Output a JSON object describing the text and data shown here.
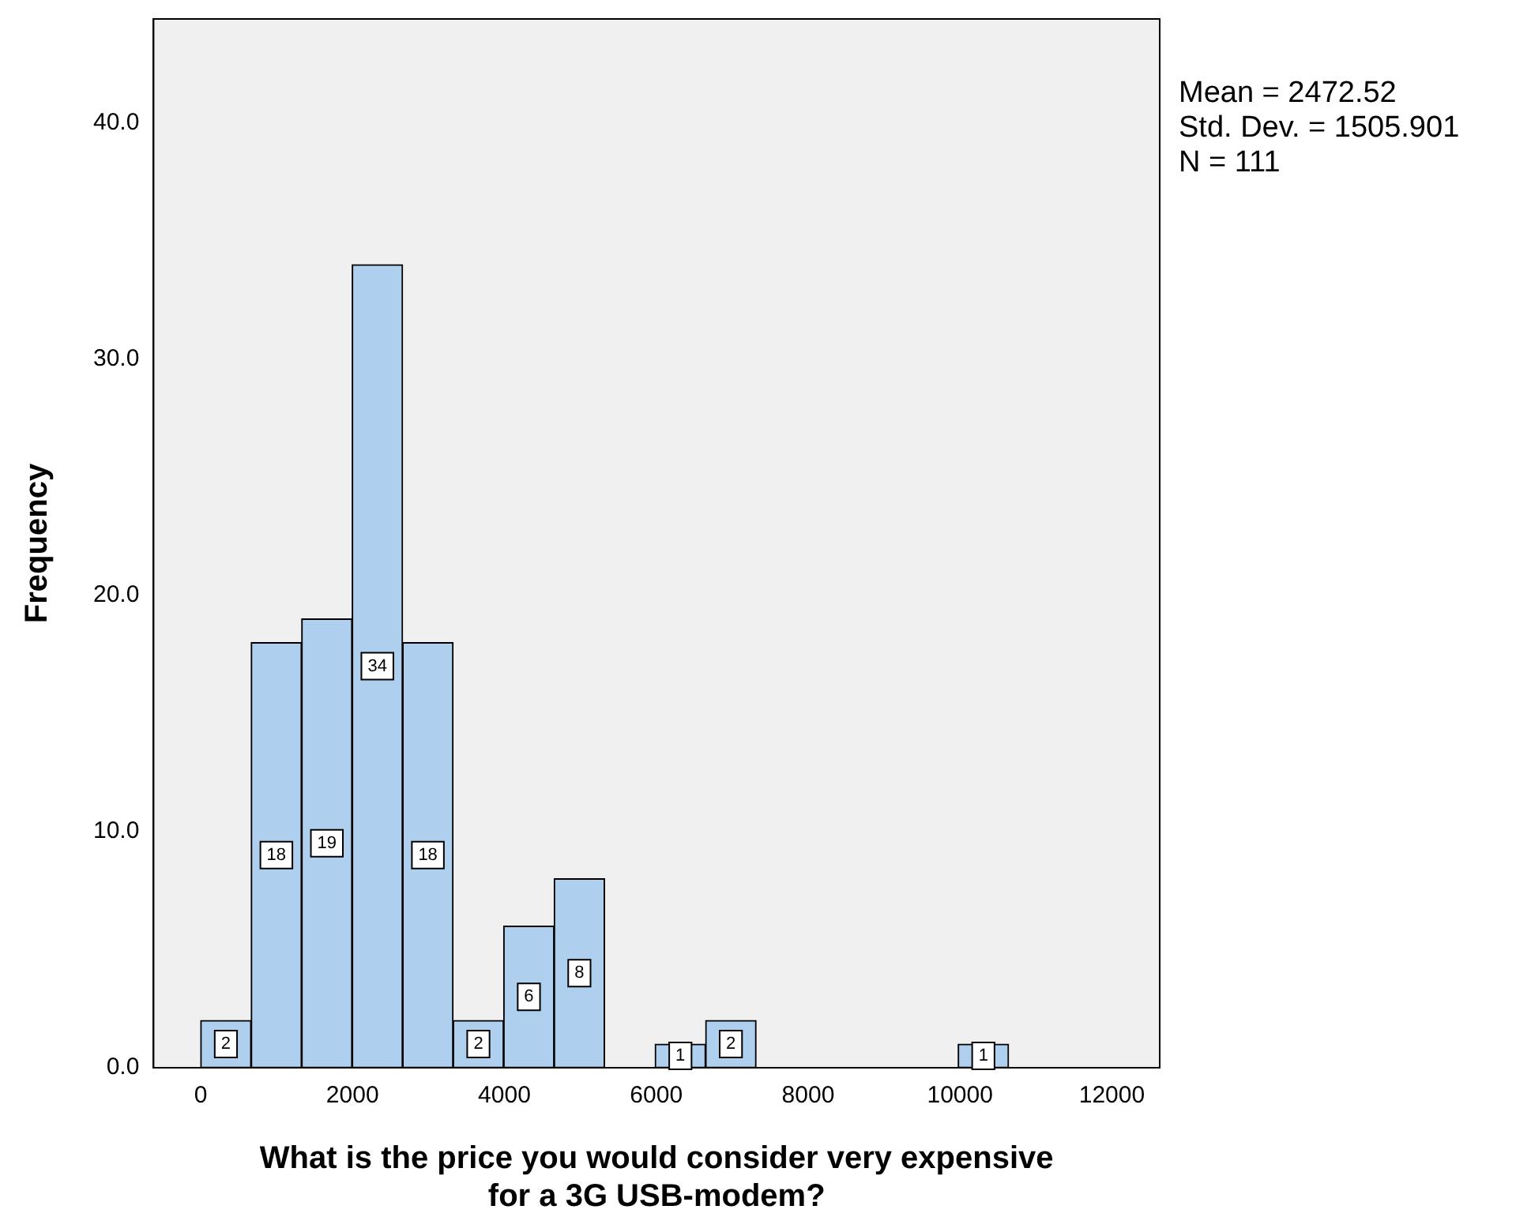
{
  "chart_data": {
    "type": "histogram",
    "xlabel": "What is the price you would consider very expensive\nfor a 3G USB-modem?",
    "ylabel": "Frequency",
    "bins": [
      0,
      665,
      1330,
      1995,
      2660,
      3325,
      3990,
      4655,
      5320,
      5985,
      6650,
      7315,
      7980,
      8645,
      9310,
      9975,
      10640
    ],
    "values": [
      2,
      18,
      19,
      34,
      18,
      2,
      6,
      8,
      0,
      1,
      2,
      0,
      0,
      0,
      0,
      1
    ],
    "value_labels": [
      "2",
      "18",
      "19",
      "34",
      "18",
      "2",
      "6",
      "8",
      null,
      "1",
      "2",
      null,
      null,
      null,
      null,
      "1"
    ],
    "color": "#aed0ee",
    "grid": false,
    "legend": false,
    "xlim": [
      -620,
      12630
    ],
    "xticks": [
      0,
      2000,
      4000,
      6000,
      8000,
      10000,
      12000
    ],
    "ylim": [
      0,
      44.4
    ],
    "yticks": [
      {
        "value": 0,
        "label": "0.0"
      },
      {
        "value": 10,
        "label": "10.0"
      },
      {
        "value": 20,
        "label": "20.0"
      },
      {
        "value": 30,
        "label": "30.0"
      },
      {
        "value": 40,
        "label": "40.0"
      }
    ],
    "annotations": [
      "Mean = 2472.52",
      "Std. Dev. = 1505.901",
      "N = 111"
    ]
  }
}
